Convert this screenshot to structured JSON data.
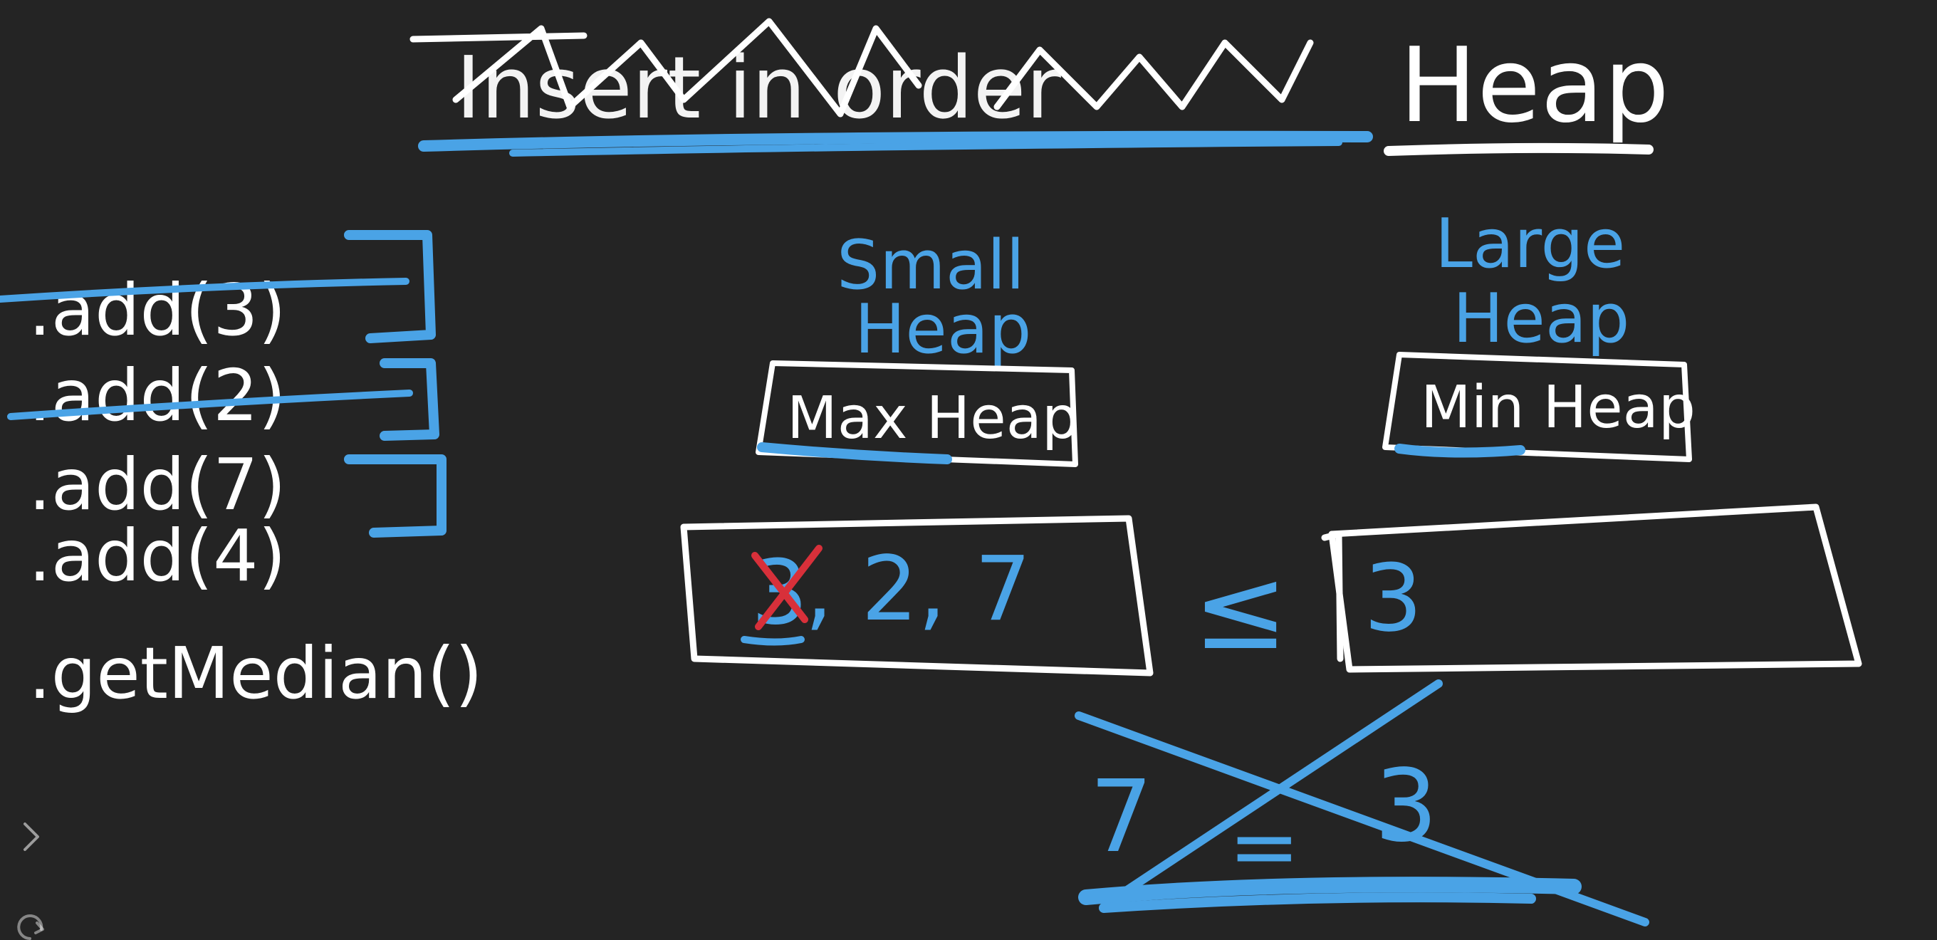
{
  "title": {
    "scribbled_text": "Insert in order",
    "word": "Heap"
  },
  "operations": [
    {
      "label": ".add(3)",
      "struck": true
    },
    {
      "label": ".add(2)",
      "struck": true
    },
    {
      "label": ".add(7)",
      "struck": false
    },
    {
      "label": ".add(4)",
      "struck": false
    },
    {
      "label": ".getMedian()",
      "struck": false
    }
  ],
  "small_heap": {
    "title_line1": "Small",
    "title_line2": "Heap",
    "type_label": "Max Heap",
    "crossed_value": "3",
    "values": ", 2, 7"
  },
  "relation_symbol": "≤",
  "large_heap": {
    "title_line1": "Large",
    "title_line2": "Heap",
    "type_label": "Min Heap",
    "values": "3"
  },
  "crossed_out_note": {
    "left": "7",
    "right": "3",
    "symbol": "="
  },
  "sidebar_icons": {
    "expand": "chevron-right-icon",
    "refresh": "refresh-icon"
  },
  "colors": {
    "background": "#242424",
    "white_ink": "#ffffff",
    "blue_ink": "#4aa3e6",
    "red_ink": "#d8303a"
  }
}
